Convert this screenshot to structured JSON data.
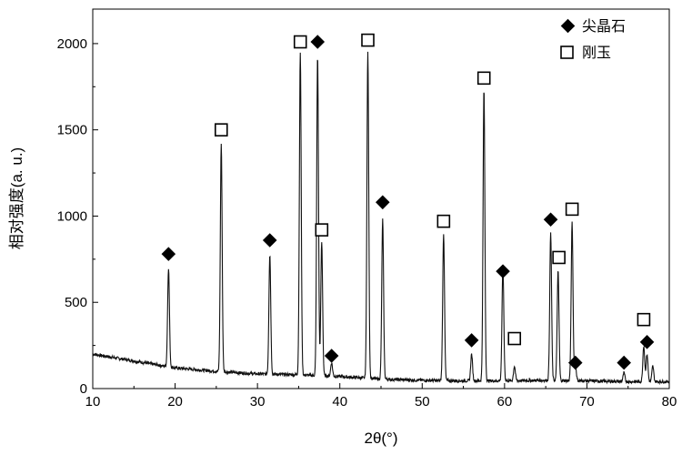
{
  "chart_data": {
    "type": "line",
    "xlabel": "2θ(°)",
    "ylabel": "相对强度(a. u.)",
    "xlim": [
      10,
      80
    ],
    "ylim": [
      0,
      2200
    ],
    "xticks": [
      10,
      20,
      30,
      40,
      50,
      60,
      70,
      80
    ],
    "yticks": [
      0,
      500,
      1000,
      1500,
      2000
    ],
    "grid": false,
    "legend_position": "top-right",
    "legend": [
      {
        "label": "尖晶石",
        "marker": "filled-diamond"
      },
      {
        "label": "刚玉",
        "marker": "open-square"
      }
    ],
    "series": [
      {
        "baseline": [
          [
            10,
            200
          ],
          [
            15,
            160
          ],
          [
            20,
            120
          ],
          [
            25,
            100
          ],
          [
            30,
            85
          ],
          [
            35,
            80
          ],
          [
            40,
            70
          ],
          [
            45,
            55
          ],
          [
            50,
            48
          ],
          [
            55,
            45
          ],
          [
            60,
            45
          ],
          [
            65,
            48
          ],
          [
            70,
            45
          ],
          [
            75,
            40
          ],
          [
            80,
            40
          ]
        ],
        "peaks": [
          {
            "x": 19.2,
            "y": 700
          },
          {
            "x": 25.6,
            "y": 1420
          },
          {
            "x": 31.5,
            "y": 780
          },
          {
            "x": 35.2,
            "y": 1950
          },
          {
            "x": 37.3,
            "y": 1930
          },
          {
            "x": 37.8,
            "y": 850
          },
          {
            "x": 39.0,
            "y": 150
          },
          {
            "x": 43.4,
            "y": 1950
          },
          {
            "x": 45.2,
            "y": 980
          },
          {
            "x": 52.6,
            "y": 900
          },
          {
            "x": 56.0,
            "y": 200
          },
          {
            "x": 57.5,
            "y": 1740
          },
          {
            "x": 59.8,
            "y": 700
          },
          {
            "x": 61.2,
            "y": 130
          },
          {
            "x": 65.6,
            "y": 900
          },
          {
            "x": 66.5,
            "y": 680
          },
          {
            "x": 68.2,
            "y": 960
          },
          {
            "x": 68.6,
            "y": 140
          },
          {
            "x": 74.5,
            "y": 90
          },
          {
            "x": 76.9,
            "y": 250
          },
          {
            "x": 77.3,
            "y": 200
          },
          {
            "x": 78.0,
            "y": 130
          }
        ]
      }
    ],
    "markers": [
      {
        "phase": "尖晶石",
        "x": 19.2,
        "y": 780
      },
      {
        "phase": "尖晶石",
        "x": 31.5,
        "y": 860
      },
      {
        "phase": "尖晶石",
        "x": 37.3,
        "y": 2010
      },
      {
        "phase": "尖晶石",
        "x": 39.0,
        "y": 190
      },
      {
        "phase": "尖晶石",
        "x": 45.2,
        "y": 1080
      },
      {
        "phase": "尖晶石",
        "x": 56.0,
        "y": 280
      },
      {
        "phase": "尖晶石",
        "x": 59.8,
        "y": 680
      },
      {
        "phase": "尖晶石",
        "x": 65.6,
        "y": 980
      },
      {
        "phase": "尖晶石",
        "x": 68.6,
        "y": 150
      },
      {
        "phase": "尖晶石",
        "x": 74.5,
        "y": 150
      },
      {
        "phase": "尖晶石",
        "x": 77.3,
        "y": 270
      },
      {
        "phase": "刚玉",
        "x": 25.6,
        "y": 1500
      },
      {
        "phase": "刚玉",
        "x": 35.2,
        "y": 2010
      },
      {
        "phase": "刚玉",
        "x": 37.8,
        "y": 920
      },
      {
        "phase": "刚玉",
        "x": 43.4,
        "y": 2020
      },
      {
        "phase": "刚玉",
        "x": 52.6,
        "y": 970
      },
      {
        "phase": "刚玉",
        "x": 57.5,
        "y": 1800
      },
      {
        "phase": "刚玉",
        "x": 61.2,
        "y": 290
      },
      {
        "phase": "刚玉",
        "x": 66.6,
        "y": 760
      },
      {
        "phase": "刚玉",
        "x": 68.2,
        "y": 1040
      },
      {
        "phase": "刚玉",
        "x": 76.9,
        "y": 400
      }
    ]
  }
}
